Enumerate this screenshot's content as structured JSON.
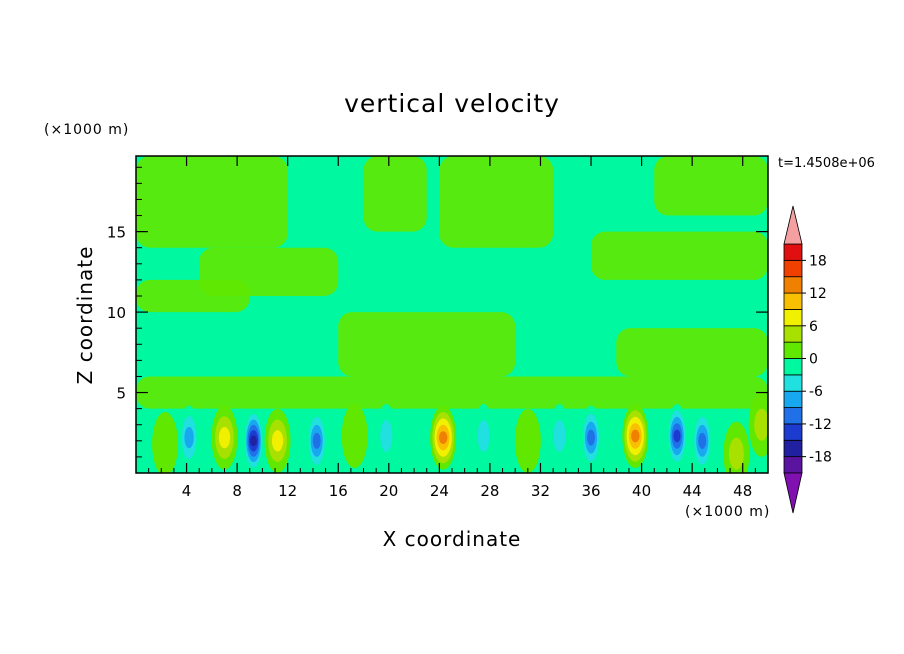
{
  "chart_data": {
    "type": "heatmap",
    "title": "vertical velocity",
    "xlabel": "X coordinate",
    "ylabel": "Z coordinate",
    "x_unit": "(×1000 m)",
    "y_unit": "(×1000 m)",
    "time_label": "t=1.4508e+06",
    "xlim": [
      0,
      50
    ],
    "ylim": [
      0,
      19.7
    ],
    "x_ticks": [
      4,
      8,
      12,
      16,
      20,
      24,
      28,
      32,
      36,
      40,
      44,
      48
    ],
    "x_tick_labels": [
      "4",
      "8",
      "12",
      "16",
      "20",
      "24",
      "28",
      "32",
      "36",
      "40",
      "44",
      "48"
    ],
    "y_ticks": [
      5,
      10,
      15
    ],
    "y_tick_labels": [
      "5",
      "10",
      "15"
    ],
    "colorbar": {
      "levels": [
        -21,
        -18,
        -15,
        -12,
        -9,
        -6,
        -3,
        0,
        3,
        6,
        9,
        12,
        15,
        18,
        21
      ],
      "labels": [
        "-18",
        "-12",
        "-6",
        "0",
        "6",
        "12",
        "18"
      ],
      "label_values": [
        -18,
        -12,
        -6,
        0,
        6,
        12,
        18
      ],
      "colors": [
        "#5a14a0",
        "#2020a0",
        "#1c3cd0",
        "#2070e8",
        "#18a8f0",
        "#20e0e0",
        "#00f8a0",
        "#60e800",
        "#a8e000",
        "#f0f000",
        "#f8c000",
        "#f08000",
        "#f04000",
        "#e01010"
      ],
      "over_color": "#f4a0a0",
      "under_color": "#8010b0"
    },
    "features": [
      {
        "x": 2.3,
        "z": 1.8,
        "w": 0.8,
        "kind": "updraft"
      },
      {
        "x": 4.2,
        "z": 2.2,
        "w": -8,
        "kind": "downdraft"
      },
      {
        "x": 7.0,
        "z": 2.2,
        "w": 9,
        "kind": "updraft"
      },
      {
        "x": 9.3,
        "z": 2.0,
        "w": -16,
        "kind": "downdraft"
      },
      {
        "x": 11.2,
        "z": 2.0,
        "w": 9,
        "kind": "updraft"
      },
      {
        "x": 14.3,
        "z": 2.0,
        "w": -10,
        "kind": "downdraft"
      },
      {
        "x": 17.3,
        "z": 2.3,
        "w": 3,
        "kind": "updraft"
      },
      {
        "x": 19.8,
        "z": 2.3,
        "w": -5,
        "kind": "downdraft"
      },
      {
        "x": 24.3,
        "z": 2.2,
        "w": 13,
        "kind": "updraft"
      },
      {
        "x": 27.5,
        "z": 2.3,
        "w": -5,
        "kind": "downdraft"
      },
      {
        "x": 31.0,
        "z": 2.0,
        "w": 3,
        "kind": "updraft"
      },
      {
        "x": 33.5,
        "z": 2.3,
        "w": -6,
        "kind": "downdraft"
      },
      {
        "x": 36.0,
        "z": 2.2,
        "w": -12,
        "kind": "downdraft"
      },
      {
        "x": 39.5,
        "z": 2.3,
        "w": 13,
        "kind": "updraft"
      },
      {
        "x": 42.8,
        "z": 2.3,
        "w": -13,
        "kind": "downdraft"
      },
      {
        "x": 44.8,
        "z": 2.0,
        "w": -12,
        "kind": "downdraft"
      },
      {
        "x": 47.5,
        "z": 1.2,
        "w": 6,
        "kind": "updraft"
      },
      {
        "x": 49.5,
        "z": 3.0,
        "w": 5,
        "kind": "updraft"
      }
    ],
    "upper_patches": [
      {
        "x": [
          0,
          12
        ],
        "z": [
          14,
          19.7
        ]
      },
      {
        "x": [
          18,
          23
        ],
        "z": [
          15,
          19.7
        ]
      },
      {
        "x": [
          24,
          33
        ],
        "z": [
          14,
          19.7
        ]
      },
      {
        "x": [
          41,
          50
        ],
        "z": [
          16,
          19.7
        ]
      },
      {
        "x": [
          0,
          9
        ],
        "z": [
          10,
          12
        ]
      },
      {
        "x": [
          5,
          16
        ],
        "z": [
          11,
          14
        ]
      },
      {
        "x": [
          16,
          30
        ],
        "z": [
          6,
          10
        ]
      },
      {
        "x": [
          36,
          50
        ],
        "z": [
          12,
          15
        ]
      },
      {
        "x": [
          38,
          50
        ],
        "z": [
          6,
          9
        ]
      },
      {
        "x": [
          0,
          50
        ],
        "z": [
          4,
          6
        ]
      }
    ]
  }
}
